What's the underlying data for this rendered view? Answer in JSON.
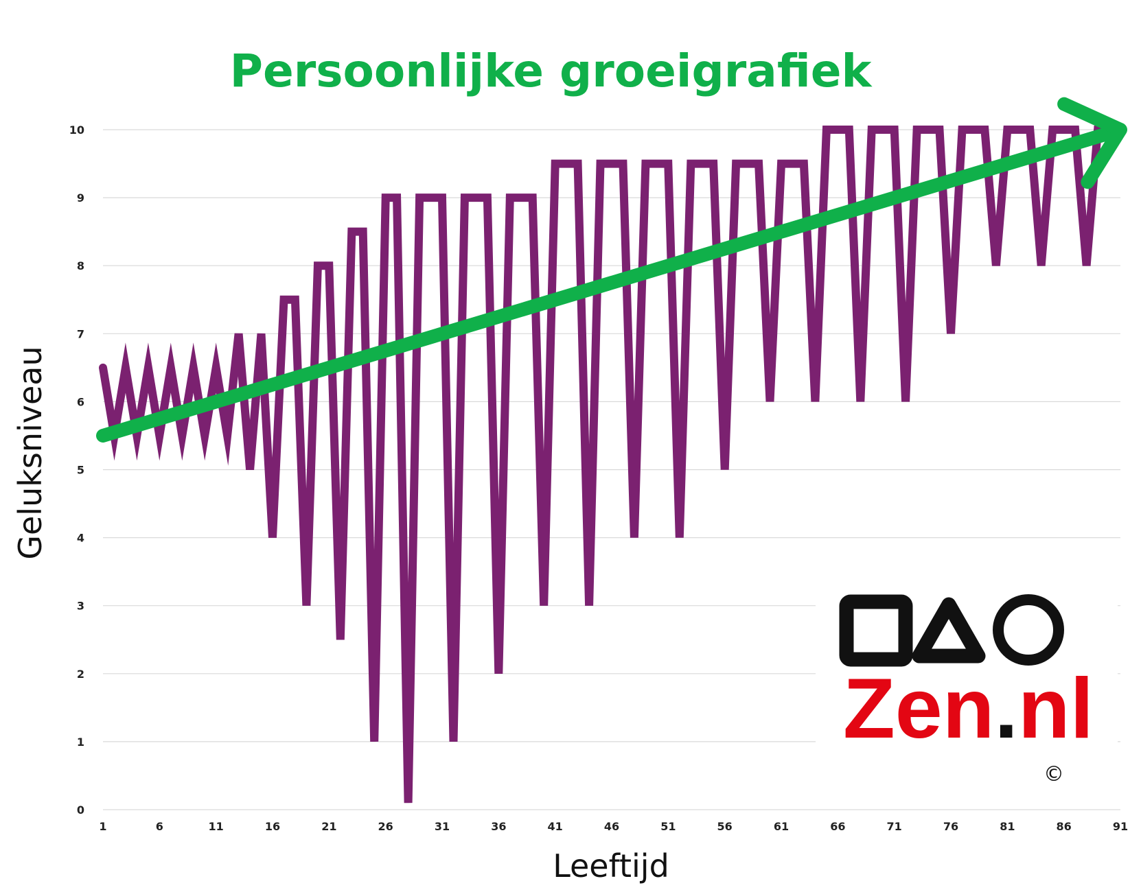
{
  "chart_data": {
    "type": "line",
    "title": "Persoonlijke groeigrafiek",
    "xlabel": "Leeftijd",
    "ylabel": "Geluksniveau",
    "xlim": [
      1,
      91
    ],
    "ylim": [
      0,
      10
    ],
    "grid": true,
    "x_ticks": [
      "1",
      "6",
      "11",
      "16",
      "21",
      "26",
      "31",
      "36",
      "41",
      "46",
      "51",
      "56",
      "61",
      "66",
      "71",
      "76",
      "81",
      "86",
      "91"
    ],
    "y_ticks": [
      "0",
      "1",
      "2",
      "3",
      "4",
      "5",
      "6",
      "7",
      "8",
      "9",
      "10"
    ],
    "series": [
      {
        "color": "#7b2170",
        "points": [
          [
            1,
            6.5
          ],
          [
            2,
            5.5
          ],
          [
            3,
            6.5
          ],
          [
            4,
            5.5
          ],
          [
            5,
            6.5
          ],
          [
            6,
            5.5
          ],
          [
            7,
            6.5
          ],
          [
            8,
            5.5
          ],
          [
            9,
            6.5
          ],
          [
            10,
            5.5
          ],
          [
            11,
            6.5
          ],
          [
            12,
            5.5
          ],
          [
            13,
            7
          ],
          [
            14,
            5
          ],
          [
            15,
            7
          ],
          [
            16,
            4
          ],
          [
            17,
            7.5
          ],
          [
            18,
            7.5
          ],
          [
            19,
            3
          ],
          [
            20,
            8
          ],
          [
            21,
            8
          ],
          [
            22,
            2.5
          ],
          [
            23,
            8.5
          ],
          [
            24,
            8.5
          ],
          [
            25,
            1
          ],
          [
            26,
            9
          ],
          [
            27,
            9
          ],
          [
            28,
            0.1
          ],
          [
            29,
            9
          ],
          [
            30,
            9
          ],
          [
            31,
            9
          ],
          [
            32,
            1
          ],
          [
            33,
            9
          ],
          [
            34,
            9
          ],
          [
            35,
            9
          ],
          [
            36,
            2
          ],
          [
            37,
            9
          ],
          [
            38,
            9
          ],
          [
            39,
            9
          ],
          [
            40,
            3
          ],
          [
            41,
            9.5
          ],
          [
            42,
            9.5
          ],
          [
            43,
            9.5
          ],
          [
            44,
            3
          ],
          [
            45,
            9.5
          ],
          [
            46,
            9.5
          ],
          [
            47,
            9.5
          ],
          [
            48,
            4
          ],
          [
            49,
            9.5
          ],
          [
            50,
            9.5
          ],
          [
            51,
            9.5
          ],
          [
            52,
            4
          ],
          [
            53,
            9.5
          ],
          [
            54,
            9.5
          ],
          [
            55,
            9.5
          ],
          [
            56,
            5
          ],
          [
            57,
            9.5
          ],
          [
            58,
            9.5
          ],
          [
            59,
            9.5
          ],
          [
            60,
            6
          ],
          [
            61,
            9.5
          ],
          [
            62,
            9.5
          ],
          [
            63,
            9.5
          ],
          [
            64,
            6
          ],
          [
            65,
            10
          ],
          [
            66,
            10
          ],
          [
            67,
            10
          ],
          [
            68,
            6
          ],
          [
            69,
            10
          ],
          [
            70,
            10
          ],
          [
            71,
            10
          ],
          [
            72,
            6
          ],
          [
            73,
            10
          ],
          [
            74,
            10
          ],
          [
            75,
            10
          ],
          [
            76,
            7
          ],
          [
            77,
            10
          ],
          [
            78,
            10
          ],
          [
            79,
            10
          ],
          [
            80,
            8
          ],
          [
            81,
            10
          ],
          [
            82,
            10
          ],
          [
            83,
            10
          ],
          [
            84,
            8
          ],
          [
            85,
            10
          ],
          [
            86,
            10
          ],
          [
            87,
            10
          ],
          [
            88,
            8
          ],
          [
            89,
            10
          ],
          [
            90,
            10
          ],
          [
            91,
            10
          ]
        ]
      }
    ],
    "trend_arrow": {
      "color": "#10b04a",
      "from": [
        1,
        5.5
      ],
      "to": [
        91,
        10
      ]
    }
  },
  "brand": {
    "name": "Zen.nl",
    "name_main": "Zen",
    "name_dot": ".",
    "name_tld": "nl",
    "copyright": "©",
    "brand_color": "#e30613",
    "dot_color": "#111111",
    "title_color": "#10b04a",
    "logo_icons": [
      "square-icon",
      "triangle-icon",
      "circle-icon"
    ]
  }
}
